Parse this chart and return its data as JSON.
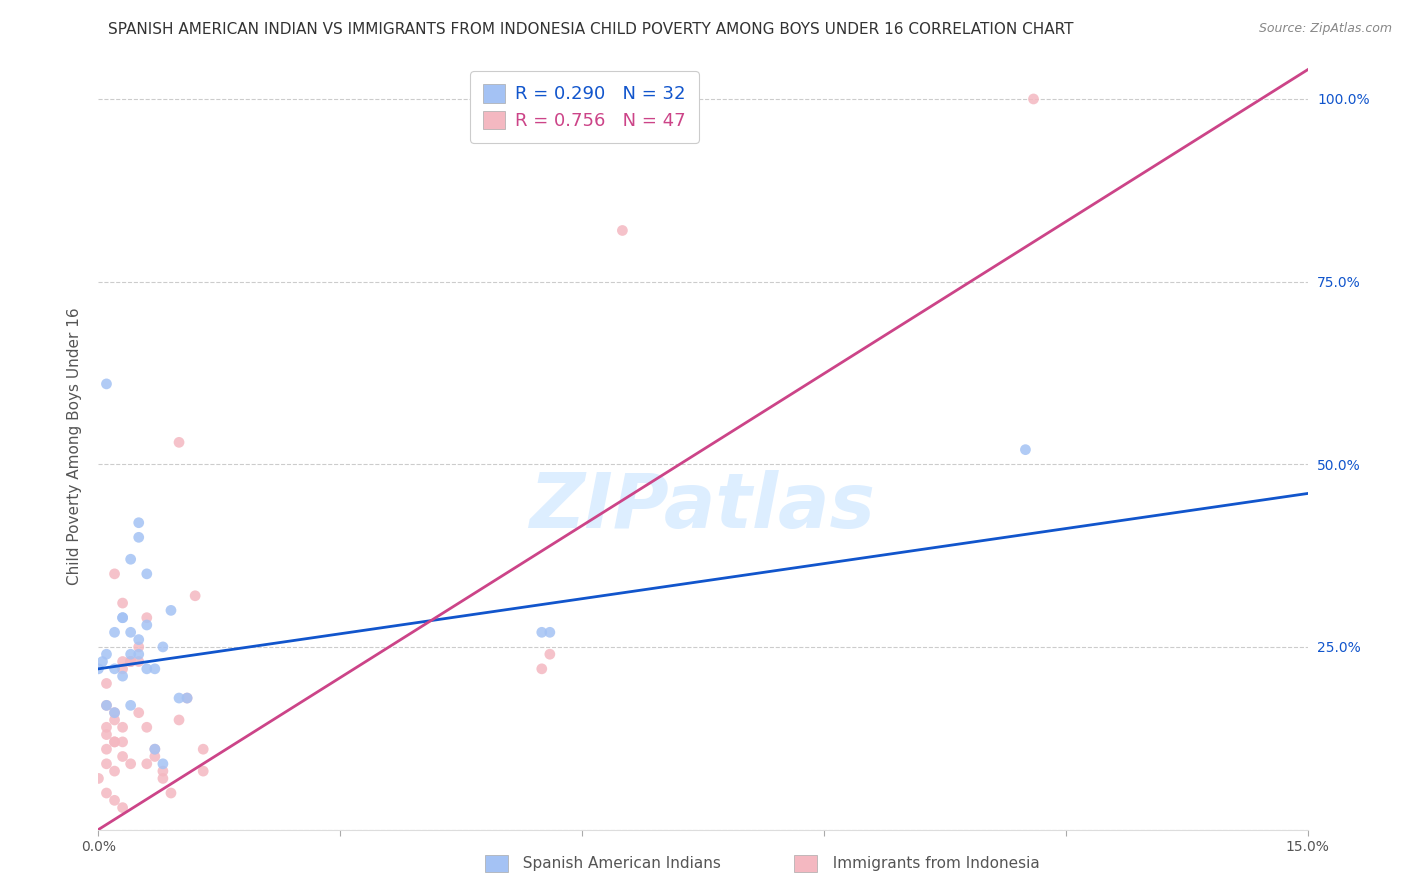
{
  "title": "SPANISH AMERICAN INDIAN VS IMMIGRANTS FROM INDONESIA CHILD POVERTY AMONG BOYS UNDER 16 CORRELATION CHART",
  "source": "Source: ZipAtlas.com",
  "ylabel": "Child Poverty Among Boys Under 16",
  "xlim": [
    0.0,
    0.15
  ],
  "ylim": [
    0.0,
    1.05
  ],
  "xtick_positions": [
    0.0,
    0.03,
    0.06,
    0.09,
    0.12,
    0.15
  ],
  "xticklabels": [
    "0.0%",
    "",
    "",
    "",
    "",
    "15.0%"
  ],
  "ytick_positions": [
    0.0,
    0.25,
    0.5,
    0.75,
    1.0
  ],
  "yticklabels": [
    "",
    "25.0%",
    "50.0%",
    "75.0%",
    "100.0%"
  ],
  "blue_color": "#a4c2f4",
  "pink_color": "#f4b8c1",
  "blue_line_color": "#1155cc",
  "pink_line_color": "#cc4488",
  "watermark": "ZIPatlas",
  "watermark_color": "#ddeeff",
  "legend_R_blue": "0.290",
  "legend_N_blue": "32",
  "legend_R_pink": "0.756",
  "legend_N_pink": "47",
  "blue_scatter_x": [
    0.001,
    0.0005,
    0.002,
    0.0,
    0.001,
    0.002,
    0.003,
    0.004,
    0.005,
    0.006,
    0.003,
    0.004,
    0.005,
    0.006,
    0.007,
    0.008,
    0.009,
    0.01,
    0.011,
    0.001,
    0.002,
    0.004,
    0.007,
    0.008,
    0.003,
    0.004,
    0.005,
    0.055,
    0.056,
    0.115,
    0.005,
    0.006
  ],
  "blue_scatter_y": [
    0.61,
    0.23,
    0.22,
    0.22,
    0.24,
    0.27,
    0.29,
    0.37,
    0.24,
    0.22,
    0.29,
    0.24,
    0.26,
    0.28,
    0.22,
    0.25,
    0.3,
    0.18,
    0.18,
    0.17,
    0.16,
    0.17,
    0.11,
    0.09,
    0.21,
    0.27,
    0.42,
    0.27,
    0.27,
    0.52,
    0.4,
    0.35
  ],
  "pink_scatter_x": [
    0.0,
    0.001,
    0.002,
    0.003,
    0.004,
    0.005,
    0.006,
    0.007,
    0.008,
    0.001,
    0.002,
    0.003,
    0.004,
    0.005,
    0.006,
    0.001,
    0.002,
    0.003,
    0.004,
    0.001,
    0.002,
    0.003,
    0.001,
    0.002,
    0.003,
    0.001,
    0.002,
    0.001,
    0.002,
    0.003,
    0.003,
    0.004,
    0.005,
    0.006,
    0.007,
    0.008,
    0.009,
    0.01,
    0.011,
    0.012,
    0.013,
    0.055,
    0.056,
    0.065,
    0.01,
    0.013,
    0.116
  ],
  "pink_scatter_y": [
    0.07,
    0.11,
    0.12,
    0.1,
    0.09,
    0.16,
    0.14,
    0.11,
    0.08,
    0.2,
    0.35,
    0.22,
    0.23,
    0.25,
    0.29,
    0.14,
    0.15,
    0.23,
    0.23,
    0.17,
    0.16,
    0.14,
    0.13,
    0.12,
    0.12,
    0.09,
    0.08,
    0.05,
    0.04,
    0.03,
    0.31,
    0.23,
    0.23,
    0.09,
    0.1,
    0.07,
    0.05,
    0.15,
    0.18,
    0.32,
    0.08,
    0.22,
    0.24,
    0.82,
    0.53,
    0.11,
    1.0
  ],
  "blue_line_x": [
    0.0,
    0.15
  ],
  "blue_line_y": [
    0.22,
    0.46
  ],
  "pink_line_x": [
    0.0,
    0.15
  ],
  "pink_line_y": [
    0.0,
    1.04
  ],
  "grid_color": "#cccccc",
  "background_color": "#ffffff",
  "title_fontsize": 11,
  "axis_label_fontsize": 11,
  "tick_fontsize": 10,
  "scatter_size": 60
}
